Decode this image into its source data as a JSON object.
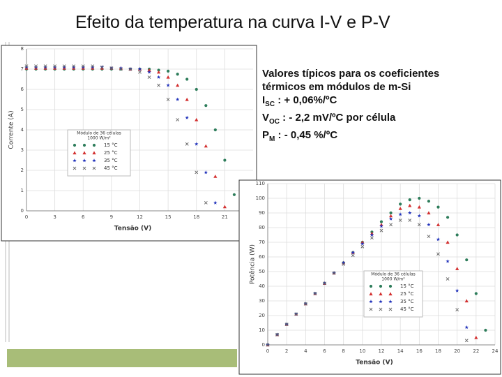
{
  "slide": {
    "title": "Efeito da temperatura na curva I-V e P-V",
    "notes": [
      {
        "text": "Valores típicos para os coeficientes"
      },
      {
        "text": "térmicos em módulos de m-Si"
      },
      {
        "main": "I",
        "sub": "SC",
        "rest": " : + 0,06%/ºC"
      },
      {
        "main": "V",
        "sub": "OC",
        "rest": " : - 2,2 mV/ºC por célula"
      },
      {
        "main": "P",
        "sub": "M",
        "rest": " : - 0,45 %/ºC"
      }
    ]
  },
  "chart_data": [
    {
      "type": "scatter",
      "x_label": "Tensão (V)",
      "y_label": "Corrente (A)",
      "legend_title": [
        "Módulo de 36 células",
        "1000 W/m²"
      ],
      "xlim": [
        0,
        24
      ],
      "xticks": [
        0,
        3,
        6,
        9,
        12,
        15,
        18,
        21
      ],
      "ylim": [
        0,
        8
      ],
      "yticks": [
        0,
        1,
        2,
        3,
        4,
        5,
        6,
        7,
        8
      ],
      "grid": true,
      "x": [
        0,
        1,
        2,
        3,
        4,
        5,
        6,
        7,
        8,
        9,
        10,
        11,
        12,
        13,
        14,
        15,
        16,
        17,
        18,
        19,
        20,
        21,
        22
      ],
      "series": [
        {
          "name": "15 °C",
          "color": "#2e7d5b",
          "marker": "circle",
          "values": [
            7.0,
            7.0,
            7.0,
            7.0,
            7.0,
            7.0,
            7.0,
            7.0,
            7.0,
            7.0,
            7.0,
            7.0,
            7.0,
            7.0,
            6.95,
            6.9,
            6.75,
            6.5,
            6.0,
            5.2,
            4.0,
            2.5,
            0.8
          ]
        },
        {
          "name": "25 °C",
          "color": "#d32f2f",
          "marker": "triangle",
          "values": [
            7.05,
            7.05,
            7.05,
            7.05,
            7.05,
            7.05,
            7.05,
            7.05,
            7.05,
            7.05,
            7.05,
            7.0,
            7.0,
            6.95,
            6.85,
            6.6,
            6.2,
            5.5,
            4.5,
            3.2,
            1.7,
            0.2,
            null
          ]
        },
        {
          "name": "35 °C",
          "color": "#2233bb",
          "marker": "star",
          "values": [
            7.1,
            7.1,
            7.1,
            7.1,
            7.1,
            7.1,
            7.1,
            7.1,
            7.1,
            7.05,
            7.05,
            7.0,
            7.0,
            6.85,
            6.6,
            6.2,
            5.5,
            4.6,
            3.3,
            1.9,
            0.4,
            null,
            null
          ]
        },
        {
          "name": "45 °C",
          "color": "#666666",
          "marker": "x",
          "values": [
            7.15,
            7.15,
            7.15,
            7.15,
            7.15,
            7.15,
            7.15,
            7.15,
            7.1,
            7.05,
            7.0,
            7.0,
            6.85,
            6.6,
            6.2,
            5.5,
            4.5,
            3.3,
            1.9,
            0.4,
            null,
            null,
            null
          ]
        }
      ]
    },
    {
      "type": "scatter",
      "x_label": "Tensão (V)",
      "y_label": "Potência (W)",
      "legend_title": [
        "Módulo de 36 células",
        "1000 W/m²"
      ],
      "xlim": [
        0,
        24
      ],
      "xticks": [
        0,
        2,
        4,
        6,
        8,
        10,
        12,
        14,
        16,
        18,
        20,
        22,
        24
      ],
      "ylim": [
        0,
        110
      ],
      "yticks": [
        0,
        10,
        20,
        30,
        40,
        50,
        60,
        70,
        80,
        90,
        100,
        110
      ],
      "grid": true,
      "x": [
        0,
        1,
        2,
        3,
        4,
        5,
        6,
        7,
        8,
        9,
        10,
        11,
        12,
        13,
        14,
        15,
        16,
        17,
        18,
        19,
        20,
        21,
        22,
        23,
        24
      ],
      "series": [
        {
          "name": "15 °C",
          "color": "#2e7d5b",
          "marker": "circle",
          "values": [
            0,
            7,
            14,
            21,
            28,
            35,
            42,
            49,
            56,
            63,
            70,
            77,
            84,
            90,
            96,
            99,
            100,
            98,
            94,
            87,
            75,
            58,
            35,
            10,
            null
          ]
        },
        {
          "name": "25 °C",
          "color": "#d32f2f",
          "marker": "triangle",
          "values": [
            0,
            7,
            14,
            21,
            28,
            35,
            42,
            49,
            56,
            63,
            70,
            76,
            82,
            88,
            93,
            95,
            94,
            90,
            82,
            70,
            52,
            30,
            5,
            null,
            null
          ]
        },
        {
          "name": "35 °C",
          "color": "#2233bb",
          "marker": "star",
          "values": [
            0,
            7,
            14,
            21,
            28,
            35,
            42,
            49,
            56,
            63,
            69,
            75,
            81,
            86,
            89,
            90,
            88,
            82,
            72,
            57,
            37,
            12,
            null,
            null,
            null
          ]
        },
        {
          "name": "45 °C",
          "color": "#666666",
          "marker": "x",
          "values": [
            0,
            7,
            14,
            21,
            28,
            35,
            42,
            49,
            55,
            61,
            67,
            73,
            78,
            82,
            85,
            85,
            82,
            74,
            62,
            45,
            24,
            3,
            null,
            null,
            null
          ]
        }
      ]
    }
  ]
}
